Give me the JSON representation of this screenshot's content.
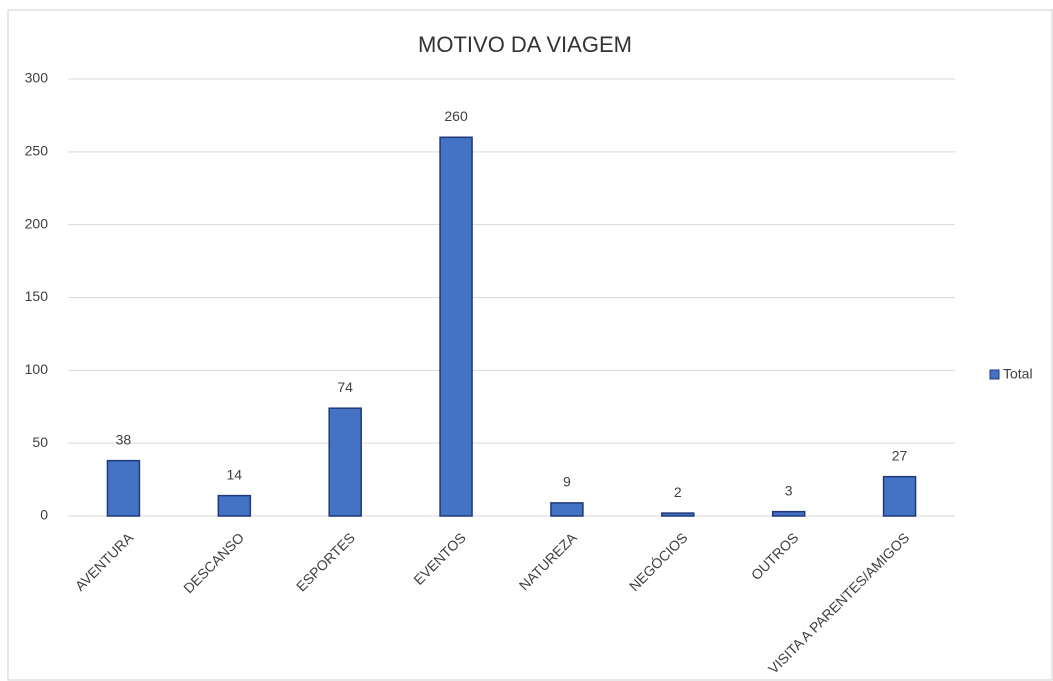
{
  "chart_data": {
    "type": "bar",
    "title": "MOTIVO DA VIAGEM",
    "categories": [
      "AVENTURA",
      "DESCANSO",
      "ESPORTES",
      "EVENTOS",
      "NATUREZA",
      "NEGÓCIOS",
      "OUTROS",
      "VISITA A PARENTES/AMIGOS"
    ],
    "series": [
      {
        "name": "Total",
        "color": "#4472c4",
        "values": [
          38,
          14,
          74,
          260,
          9,
          2,
          3,
          27
        ]
      }
    ],
    "ylim": [
      0,
      300
    ],
    "yticks": [
      0,
      50,
      100,
      150,
      200,
      250,
      300
    ],
    "grid": true,
    "legend": "right",
    "data_labels": true
  }
}
